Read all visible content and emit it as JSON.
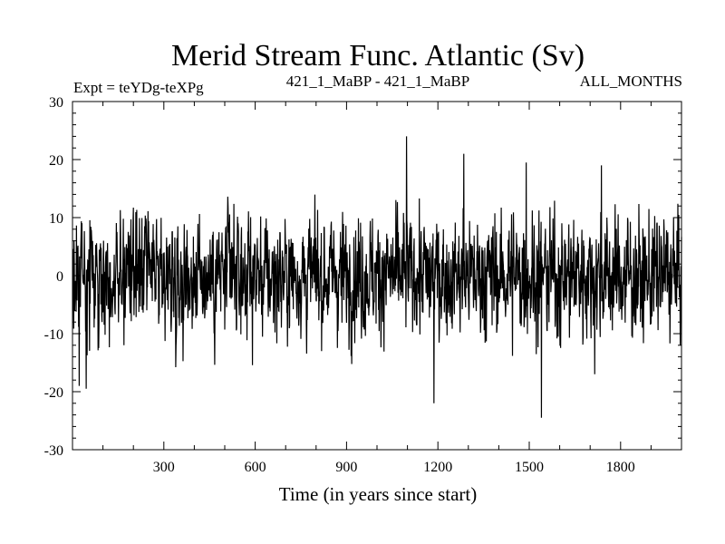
{
  "chart_data": {
    "type": "line",
    "title": "Merid Stream Func. Atlantic (Sv)",
    "subtitle_left": "Expt = teYDg-teXPg",
    "subtitle_center": "421_1_MaBP - 421_1_MaBP",
    "subtitle_right": "ALL_MONTHS",
    "xlabel": "Time (in years since start)",
    "ylabel": "",
    "xlim": [
      0,
      2000
    ],
    "ylim": [
      -30,
      30
    ],
    "x_ticks": [
      300,
      600,
      900,
      1200,
      1500,
      1800
    ],
    "x_tick_labels": [
      "300",
      "600",
      "900",
      "1200",
      "1500",
      "1800"
    ],
    "y_ticks": [
      -30,
      -20,
      -10,
      0,
      10,
      20,
      30
    ],
    "y_tick_labels": [
      "-30",
      "-20",
      "-10",
      "0",
      "10",
      "20",
      "30"
    ],
    "grid": false,
    "series": [
      {
        "name": "Merid Stream Func. Atlantic",
        "color": "#000000",
        "n_points": 2000,
        "x_start": 1,
        "x_step": 1,
        "noise_amplitude": 6.5,
        "notable_points": [
          {
            "x": 22,
            "y": -19
          },
          {
            "x": 45,
            "y": -19.5
          },
          {
            "x": 1097,
            "y": 24
          },
          {
            "x": 1187,
            "y": -22
          },
          {
            "x": 1285,
            "y": 21
          },
          {
            "x": 1490,
            "y": 19.5
          },
          {
            "x": 1540,
            "y": -24.5
          },
          {
            "x": 1737,
            "y": 19
          },
          {
            "x": 1715,
            "y": -17
          }
        ]
      }
    ]
  }
}
